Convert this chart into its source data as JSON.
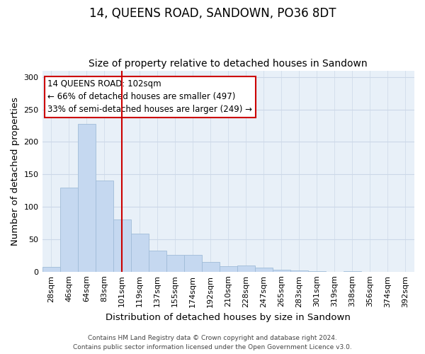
{
  "title": "14, QUEENS ROAD, SANDOWN, PO36 8DT",
  "subtitle": "Size of property relative to detached houses in Sandown",
  "xlabel": "Distribution of detached houses by size in Sandown",
  "ylabel": "Number of detached properties",
  "footer_line1": "Contains HM Land Registry data © Crown copyright and database right 2024.",
  "footer_line2": "Contains public sector information licensed under the Open Government Licence v3.0.",
  "bar_labels": [
    "28sqm",
    "46sqm",
    "64sqm",
    "83sqm",
    "101sqm",
    "119sqm",
    "137sqm",
    "155sqm",
    "174sqm",
    "192sqm",
    "210sqm",
    "228sqm",
    "247sqm",
    "265sqm",
    "283sqm",
    "301sqm",
    "319sqm",
    "338sqm",
    "356sqm",
    "374sqm",
    "392sqm"
  ],
  "bar_values": [
    7,
    129,
    228,
    140,
    80,
    59,
    32,
    26,
    26,
    15,
    8,
    9,
    6,
    3,
    2,
    1,
    0,
    1,
    0,
    0,
    0
  ],
  "bar_color": "#c5d8f0",
  "bar_edge_color": "#a0bcd8",
  "vline_x_index": 4,
  "vline_color": "#cc0000",
  "annotation_title": "14 QUEENS ROAD: 102sqm",
  "annotation_line1": "← 66% of detached houses are smaller (497)",
  "annotation_line2": "33% of semi-detached houses are larger (249) →",
  "annotation_box_color": "#ffffff",
  "annotation_box_edge": "#cc0000",
  "ylim": [
    0,
    310
  ],
  "yticks": [
    0,
    50,
    100,
    150,
    200,
    250,
    300
  ],
  "plot_bg_color": "#e8f0f8",
  "background_color": "#ffffff",
  "grid_color": "#ccd8e8",
  "title_fontsize": 12,
  "subtitle_fontsize": 10,
  "axis_label_fontsize": 9.5,
  "tick_fontsize": 8,
  "annotation_fontsize": 8.5,
  "footer_fontsize": 6.5
}
